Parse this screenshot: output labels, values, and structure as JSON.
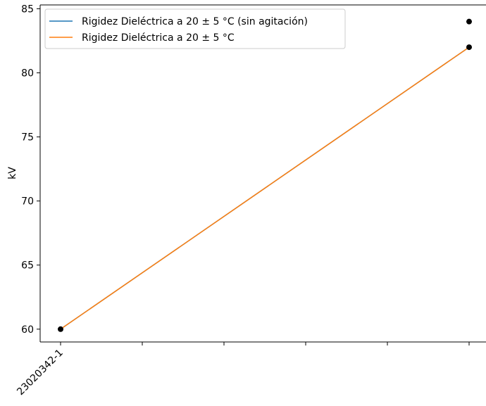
{
  "chart_data": {
    "type": "line",
    "title": "",
    "xlabel": "",
    "ylabel": "kV",
    "ylim": [
      59,
      85.3
    ],
    "yticks": [
      60,
      65,
      70,
      75,
      80,
      85
    ],
    "xtick_labels": [
      "23020342-1",
      "",
      "",
      "",
      "",
      ""
    ],
    "xtick_count": 6,
    "grid": false,
    "legend_position": "upper-left",
    "series": [
      {
        "name": "Rigidez Dieléctrica a 20 ± 5 °C (sin agitación)",
        "color": "#1f77b4",
        "x": [
          0,
          5
        ],
        "y": [
          60,
          82
        ]
      },
      {
        "name": "Rigidez Dieléctrica a 20 ± 5 °C",
        "color": "#ff7f0e",
        "x": [
          0,
          5
        ],
        "y": [
          60,
          82
        ]
      }
    ],
    "points": [
      {
        "x": 0,
        "y": 60
      },
      {
        "x": 5,
        "y": 84
      },
      {
        "x": 5,
        "y": 82
      }
    ],
    "point_color": "#000000"
  }
}
